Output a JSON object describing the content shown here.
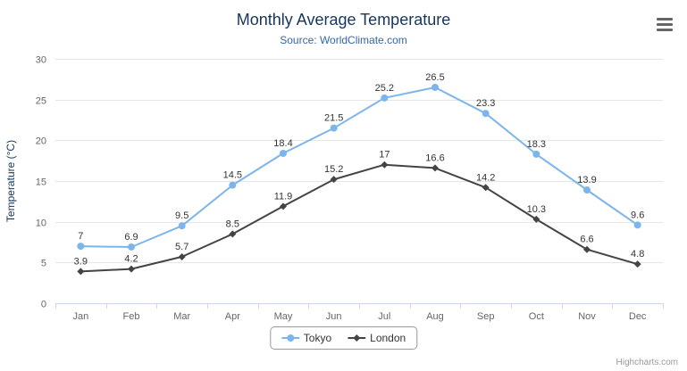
{
  "title": "Monthly Average Temperature",
  "subtitle": "Source: WorldClimate.com",
  "credits": "Highcharts.com",
  "context_menu_icon": "hamburger-menu",
  "colors": {
    "tokyo": "#7cb5ec",
    "london": "#434348",
    "grid_line": "#e6e6e6",
    "axis_line": "#ccd6eb",
    "axis_label": "#666666",
    "data_label": "#333333",
    "title_color": "#16365c",
    "subtitle_color": "#3366aa"
  },
  "chart_data": {
    "type": "line",
    "title": "Monthly Average Temperature",
    "subtitle": "Source: WorldClimate.com",
    "categories": [
      "Jan",
      "Feb",
      "Mar",
      "Apr",
      "May",
      "Jun",
      "Jul",
      "Aug",
      "Sep",
      "Oct",
      "Nov",
      "Dec"
    ],
    "series": [
      {
        "name": "Tokyo",
        "color": "#7cb5ec",
        "marker": "circle",
        "values": [
          7,
          6.9,
          9.5,
          14.5,
          18.4,
          21.5,
          25.2,
          26.5,
          23.3,
          18.3,
          13.9,
          9.6
        ]
      },
      {
        "name": "London",
        "color": "#434348",
        "marker": "diamond",
        "values": [
          3.9,
          4.2,
          5.7,
          8.5,
          11.9,
          15.2,
          17,
          16.6,
          14.2,
          10.3,
          6.6,
          4.8
        ]
      }
    ],
    "xlabel": "",
    "ylabel": "Temperature (°C)",
    "ylim": [
      0,
      30
    ],
    "ytick_interval": 5,
    "yticks": [
      0,
      5,
      10,
      15,
      20,
      25,
      30
    ],
    "grid": true,
    "data_labels": true,
    "legend_position": "bottom"
  }
}
